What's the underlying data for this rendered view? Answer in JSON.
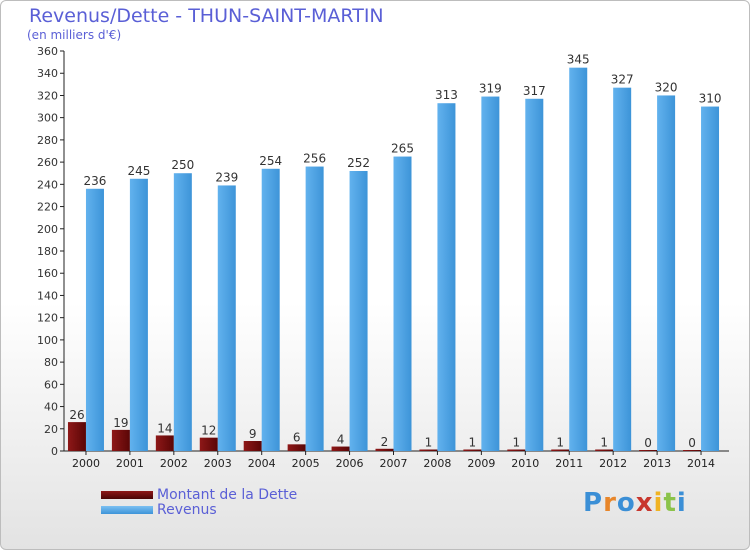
{
  "header": {
    "title": "Revenus/Dette - THUN-SAINT-MARTIN",
    "subtitle": "(en milliers d'€)"
  },
  "legend": {
    "dette_label": "Montant de la Dette",
    "revenus_label": "Revenus"
  },
  "logo": {
    "text": "Proxiti"
  },
  "colors": {
    "dette": "#7a1010",
    "revenus": "#4aa3e4",
    "text": "#5a5fd6",
    "axis": "#222222"
  },
  "chart_data": {
    "type": "bar",
    "title": "Revenus/Dette - THUN-SAINT-MARTIN",
    "ylabel": "(en milliers d'€)",
    "xlabel": "",
    "ylim": [
      0,
      360
    ],
    "ytick_step": 20,
    "grid": false,
    "legend_position": "bottom-left",
    "categories": [
      "2000",
      "2001",
      "2002",
      "2003",
      "2004",
      "2005",
      "2006",
      "2007",
      "2008",
      "2009",
      "2010",
      "2011",
      "2012",
      "2013",
      "2014"
    ],
    "series": [
      {
        "name": "Montant de la Dette",
        "values": [
          26,
          19,
          14,
          12,
          9,
          6,
          4,
          2,
          1,
          1,
          1,
          1,
          1,
          0,
          0
        ]
      },
      {
        "name": "Revenus",
        "values": [
          236,
          245,
          250,
          239,
          254,
          256,
          252,
          265,
          313,
          319,
          317,
          345,
          327,
          320,
          310
        ]
      }
    ]
  }
}
